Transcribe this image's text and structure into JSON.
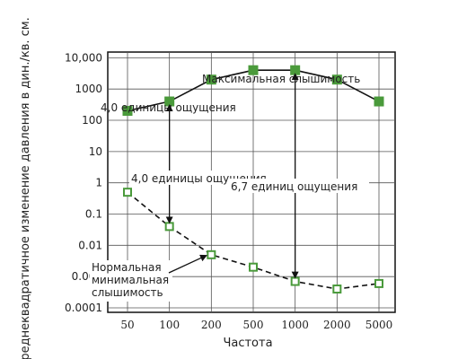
{
  "chart_data": {
    "type": "line",
    "ylabel": "Среднеквадратичное изменение давления в дин./кв. см.",
    "xlabel": "Частота",
    "y_scale": "log",
    "ylim": [
      0.0001,
      50000
    ],
    "y_ticks": [
      {
        "value": 0.0001,
        "label": "0.0001"
      },
      {
        "value": 0.001,
        "label": "0.001"
      },
      {
        "value": 0.01,
        "label": "0.01"
      },
      {
        "value": 0.1,
        "label": "0.1"
      },
      {
        "value": 1,
        "label": "1"
      },
      {
        "value": 10,
        "label": "10"
      },
      {
        "value": 100,
        "label": "100"
      },
      {
        "value": 1000,
        "label": "1000"
      },
      {
        "value": 10000,
        "label": "10,000"
      }
    ],
    "categories": [
      "50",
      "100",
      "200",
      "500",
      "1000",
      "2000",
      "5000"
    ],
    "grid": true,
    "series": [
      {
        "name": "Максимальная слышимость",
        "style": "solid",
        "marker": "filled-square",
        "color": "#4a9a3b",
        "values": [
          200,
          400,
          2000,
          4000,
          4000,
          2000,
          400
        ]
      },
      {
        "name": "Нормальная минимальная слышимость",
        "style": "dashed",
        "marker": "open-square",
        "color": "#4a9a3b",
        "values": [
          0.5,
          0.04,
          0.005,
          0.002,
          0.0007,
          0.0004,
          0.0006
        ]
      }
    ],
    "annotations": [
      {
        "text": "Максимальная слышимость",
        "kind": "series-label"
      },
      {
        "text": "4,0 единицы ощущения",
        "kind": "label-top"
      },
      {
        "text": "4,0 единицы ощущения",
        "kind": "span",
        "category": "100",
        "from": 0.04,
        "to": 400
      },
      {
        "text": "6,7 единиц ощущения",
        "kind": "span",
        "category": "1000",
        "from": 0.0007,
        "to": 4000
      },
      {
        "lines": [
          "Нормальная",
          "минимальная",
          "слышимость"
        ],
        "kind": "pointer",
        "category": "200",
        "value": 0.005
      }
    ]
  }
}
